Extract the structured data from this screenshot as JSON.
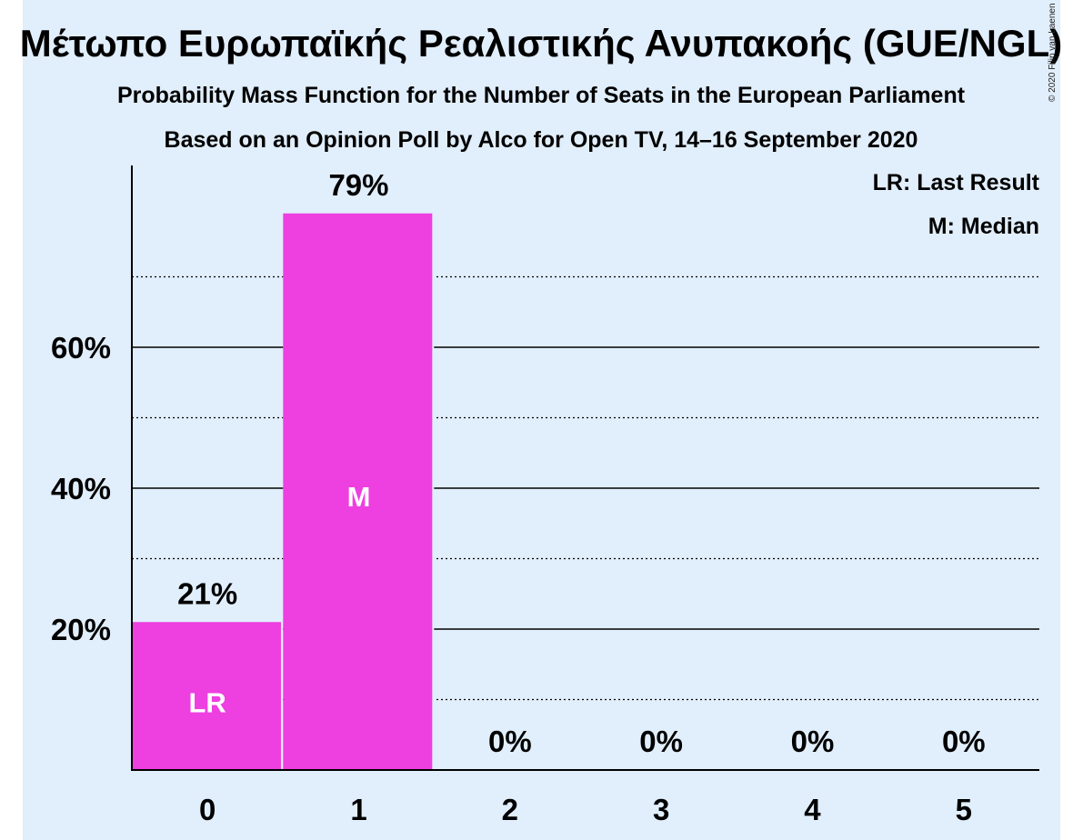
{
  "chart_data": {
    "type": "bar",
    "title": "Μέτωπο Ευρωπαϊκής Ρεαλιστικής Ανυπακοής (GUE/NGL)",
    "subtitle": "Probability Mass Function for the Number of Seats in the European Parliament",
    "subtitle2": "Based on an Opinion Poll by Alco for Open TV, 14–16 September 2020",
    "copyright": "© 2020 Filip van Laenen",
    "categories": [
      "0",
      "1",
      "2",
      "3",
      "4",
      "5"
    ],
    "values": [
      21,
      79,
      0,
      0,
      0,
      0
    ],
    "value_labels": [
      "21%",
      "79%",
      "0%",
      "0%",
      "0%",
      "0%"
    ],
    "bar_markers": [
      "LR",
      "M",
      "",
      "",
      "",
      ""
    ],
    "ylim": [
      0,
      85
    ],
    "yticks": [
      20,
      40,
      60
    ],
    "ytick_labels": [
      "20%",
      "40%",
      "60%"
    ],
    "minor_gridlines": [
      10,
      30,
      50,
      70
    ],
    "legend": [
      "LR: Last Result",
      "M: Median"
    ],
    "legend_placement": "top-right",
    "grid": true,
    "bar_color": "#ee3fe0"
  }
}
